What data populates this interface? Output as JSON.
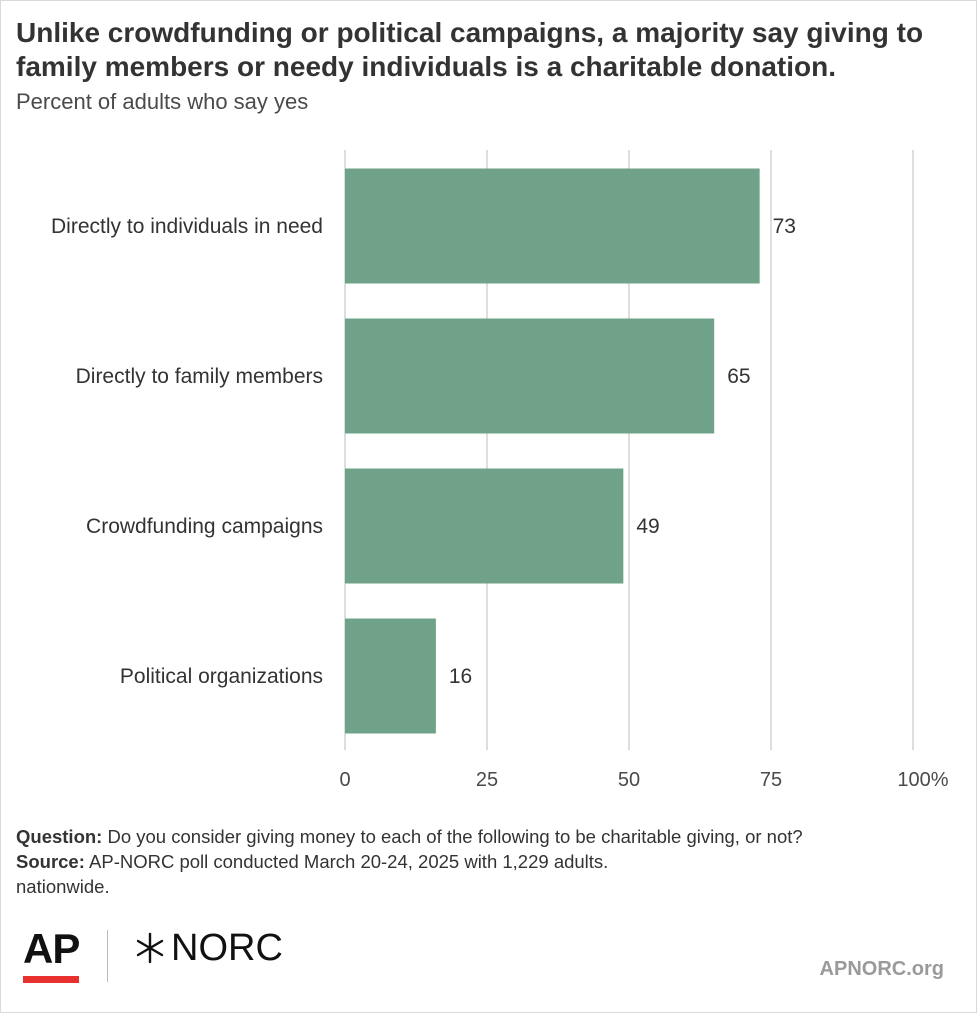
{
  "title": "Unlike crowdfunding or political campaigns, a majority say giving to family members or needy individuals is a charitable donation.",
  "subtitle": "Percent of adults who say yes",
  "chart_data": {
    "type": "bar",
    "orientation": "horizontal",
    "categories": [
      "Directly to individuals in need",
      "Directly to family members",
      "Crowdfunding campaigns",
      "Political organizations"
    ],
    "values": [
      73,
      65,
      49,
      16
    ],
    "data_labels": [
      "73",
      "65",
      "49",
      "16"
    ],
    "xlim": [
      0,
      100
    ],
    "ticks": [
      0,
      25,
      50,
      75,
      100
    ],
    "tick_labels": [
      "0",
      "25",
      "50",
      "75",
      "100%"
    ],
    "grid": true,
    "bar_color": "#6fa288",
    "grid_color": "#d4d4d4"
  },
  "notes": {
    "question_label": "Question:",
    "question_text": " Do you consider giving money to each of the following to be charitable giving, or not?",
    "source_label": "Source:",
    "source_text": " AP-NORC poll conducted March 20-24, 2025 with 1,229 adults.",
    "source_text_2": "nationwide."
  },
  "footer": {
    "logo_ap": "AP",
    "logo_norc": "NORC",
    "url": "APNORC.org",
    "ap_red": "#e8312f"
  }
}
